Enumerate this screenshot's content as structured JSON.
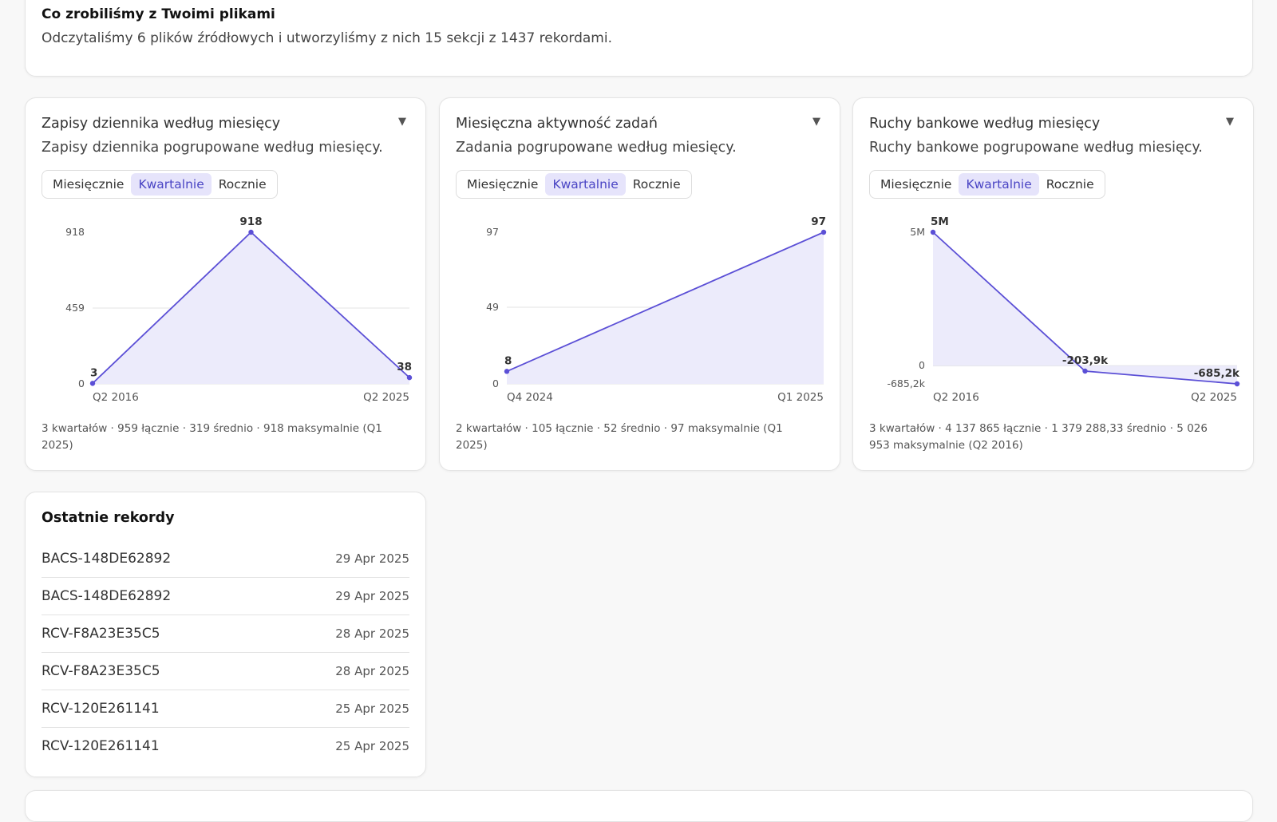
{
  "summary": {
    "title": "Co zrobiliśmy z Twoimi plikami",
    "text": "Odczytaliśmy 6 plików źródłowych i utworzyliśmy z nich 15 sekcji z 1437 rekordami."
  },
  "accent_color": "#5b4fd6",
  "fill_color": "#ecebfb",
  "toggle_options": [
    "Miesięcznie",
    "Kwartalnie",
    "Rocznie"
  ],
  "toggle_selected": "Kwartalnie",
  "caret_icon": "chevron-down-icon",
  "charts": [
    {
      "title": "Zapisy dziennika według miesięcy",
      "subtitle": "Zapisy dziennika pogrupowane według miesięcy.",
      "stats": "3 kwartałów · 959 łącznie · 319 średnio · 918 maksymalnie (Q1 2025)"
    },
    {
      "title": "Miesięczna aktywność zadań",
      "subtitle": "Zadania pogrupowane według miesięcy.",
      "stats": "2 kwartałów · 105 łącznie · 52 średnio · 97 maksymalnie (Q1 2025)"
    },
    {
      "title": "Ruchy bankowe według miesięcy",
      "subtitle": "Ruchy bankowe pogrupowane według miesięcy.",
      "stats": "3 kwartałów · 4 137 865 łącznie · 1 379 288,33 średnio · 5 026 953 maksymalnie (Q2 2016)"
    }
  ],
  "chart_data": [
    {
      "type": "area",
      "ylim": [
        0,
        918
      ],
      "yticks": [
        0,
        459,
        918
      ],
      "ytick_labels": [
        "0",
        "459",
        "918"
      ],
      "x_labels": [
        "Q2 2016",
        "Q2 2025"
      ],
      "values": [
        3,
        918,
        38
      ],
      "value_labels": [
        "3",
        "918",
        "38"
      ],
      "grid": true
    },
    {
      "type": "area",
      "ylim": [
        0,
        97
      ],
      "yticks": [
        0,
        49,
        97
      ],
      "ytick_labels": [
        "0",
        "49",
        "97"
      ],
      "x_labels": [
        "Q4 2024",
        "Q1 2025"
      ],
      "values": [
        8,
        97
      ],
      "value_labels": [
        "8",
        "97"
      ],
      "grid": true
    },
    {
      "type": "area",
      "ylim": [
        -685200,
        5026953
      ],
      "yticks": [
        -685200,
        0,
        5026953
      ],
      "ytick_labels": [
        "-685,2k",
        "0",
        "5M"
      ],
      "x_labels": [
        "Q2 2016",
        "Q2 2025"
      ],
      "values": [
        5026953,
        -203900,
        -685200
      ],
      "value_labels": [
        "5M",
        "-203,9k",
        "-685,2k"
      ],
      "grid": false
    }
  ],
  "records": {
    "title": "Ostatnie rekordy",
    "items": [
      {
        "id": "BACS-148DE62892",
        "date": "29 Apr 2025"
      },
      {
        "id": "BACS-148DE62892",
        "date": "29 Apr 2025"
      },
      {
        "id": "RCV-F8A23E35C5",
        "date": "28 Apr 2025"
      },
      {
        "id": "RCV-F8A23E35C5",
        "date": "28 Apr 2025"
      },
      {
        "id": "RCV-120E261141",
        "date": "25 Apr 2025"
      },
      {
        "id": "RCV-120E261141",
        "date": "25 Apr 2025"
      }
    ]
  }
}
